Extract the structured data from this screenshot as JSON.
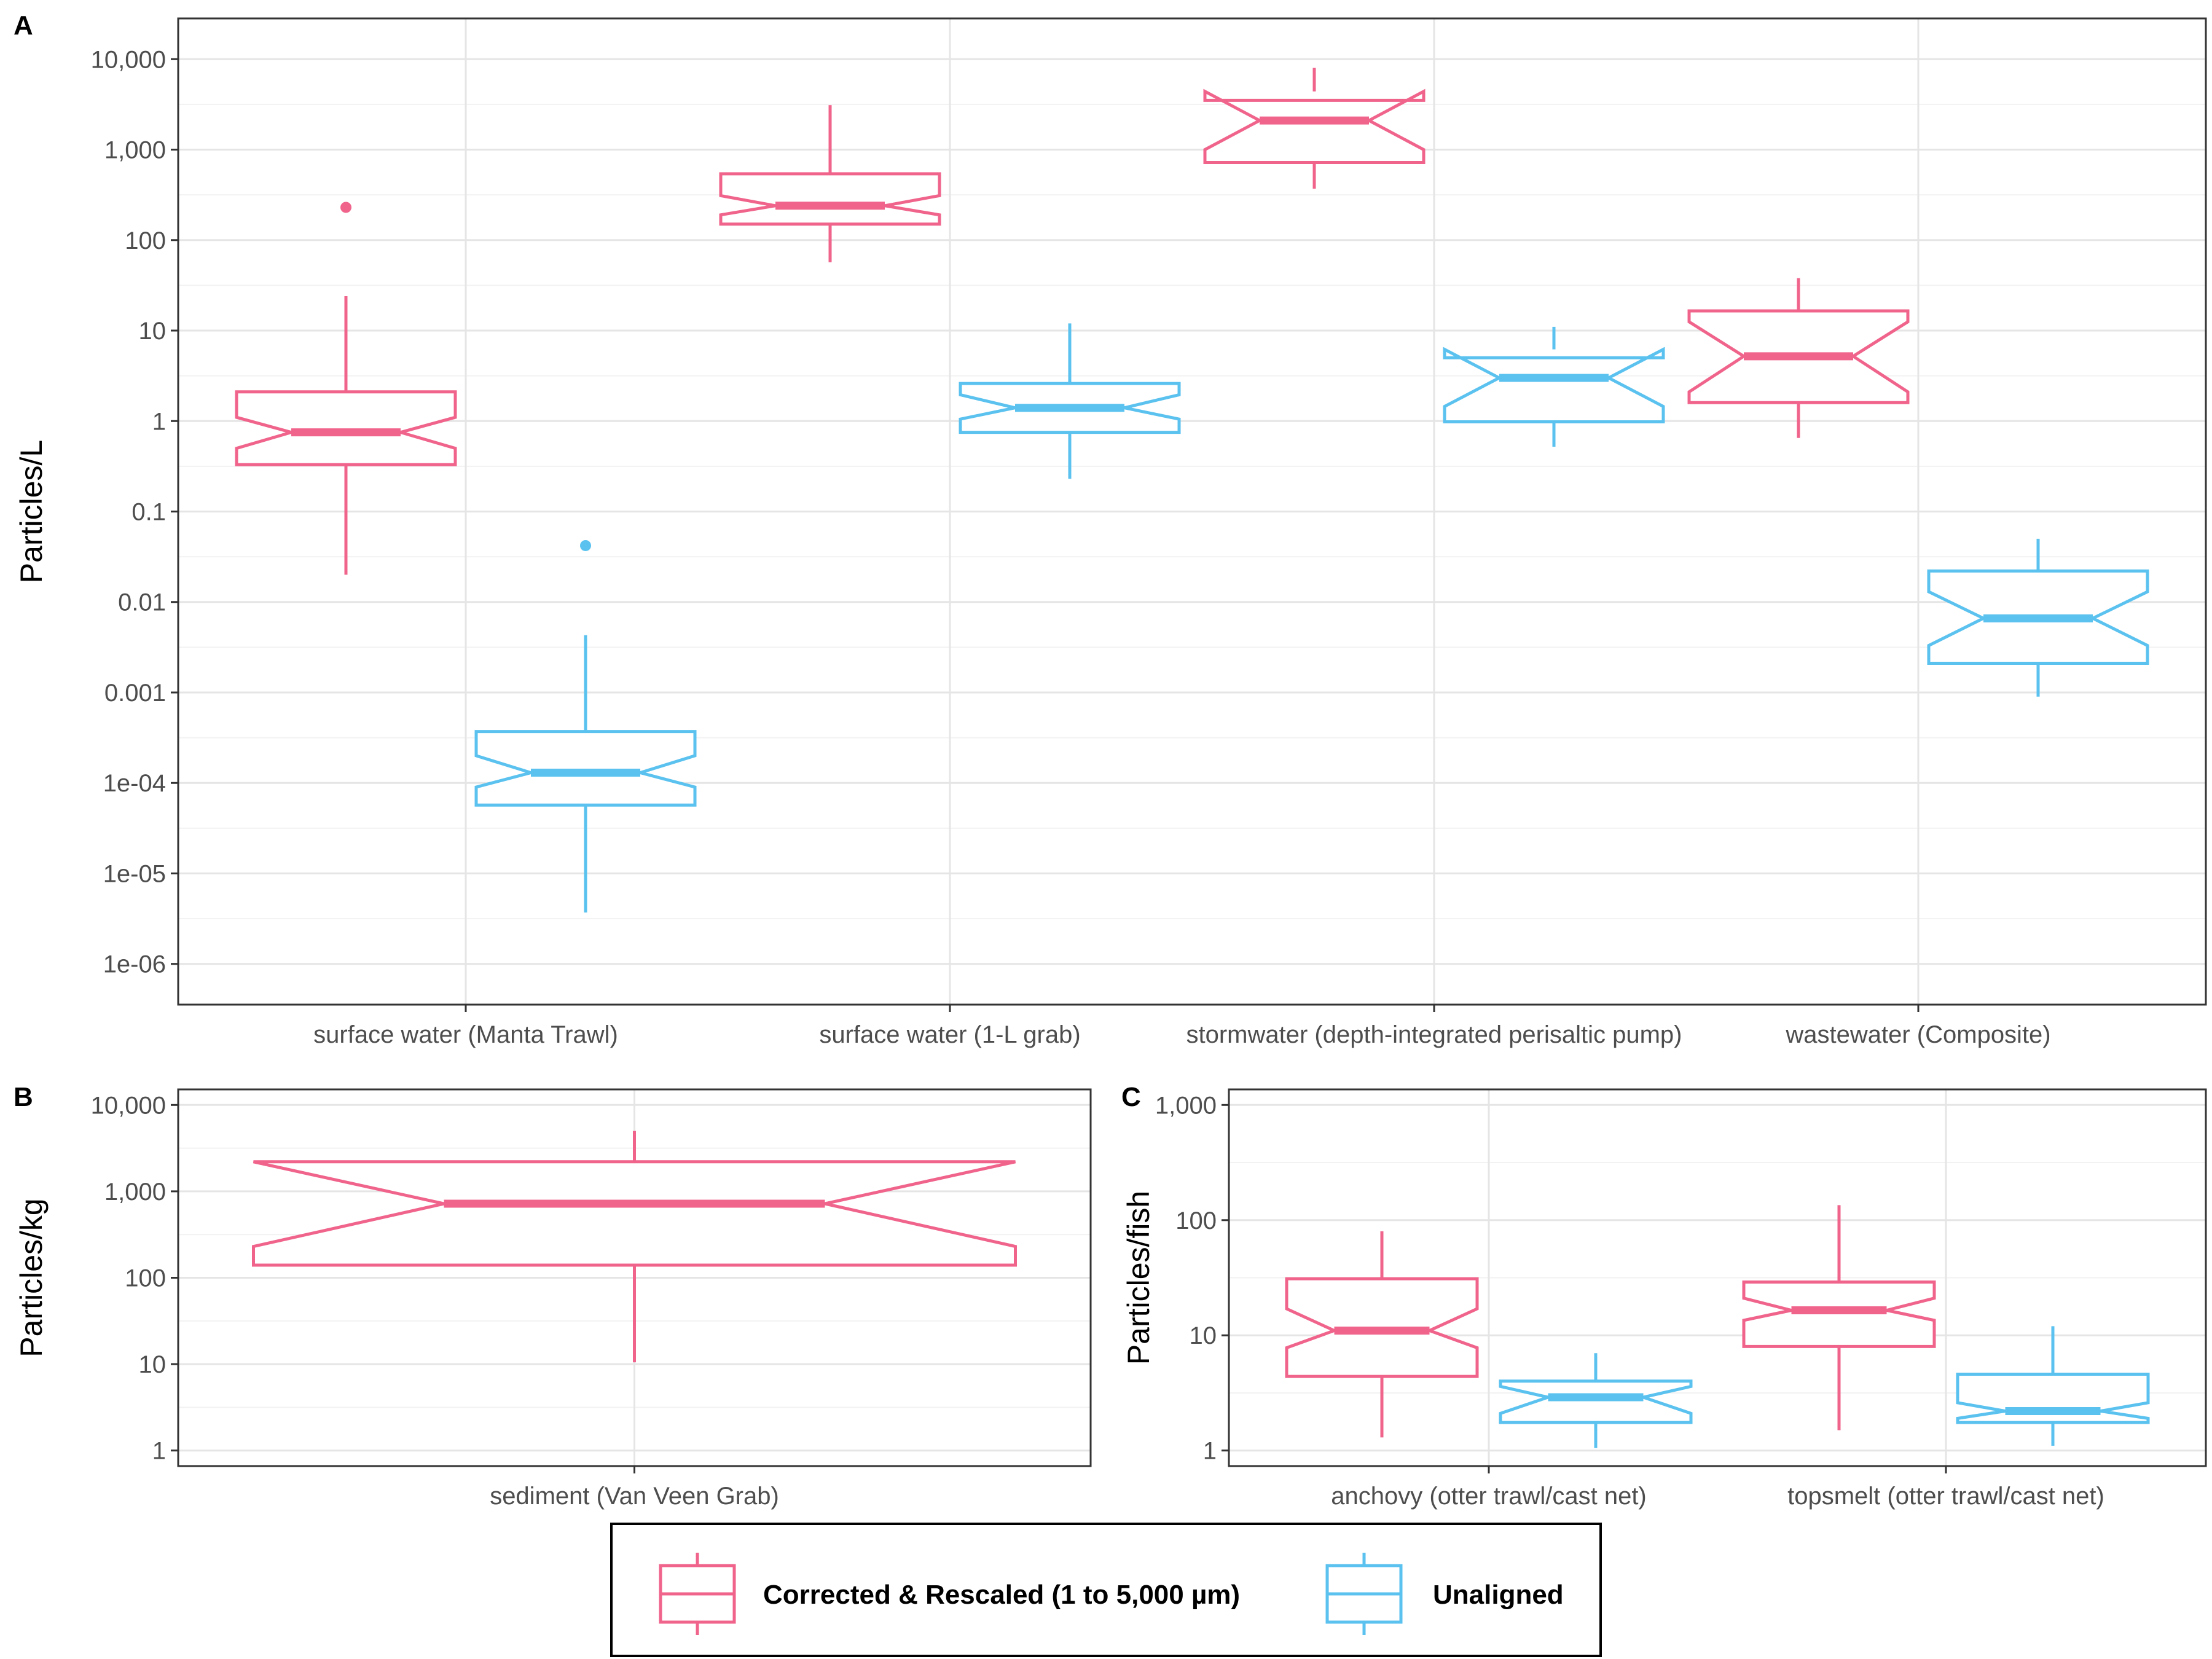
{
  "colors": {
    "corrected": "#f0648c",
    "unaligned": "#5bc2ef",
    "grid_major": "#e5e5e5",
    "grid_minor": "#f2f2f2",
    "border": "#333333"
  },
  "legend": {
    "position": "bottom",
    "items": [
      {
        "label": "Corrected & Rescaled (1 to 5,000 µm)",
        "color": "#f0648c"
      },
      {
        "label": "Unaligned",
        "color": "#5bc2ef"
      }
    ]
  },
  "chart_data": [
    {
      "panel": "A",
      "type": "boxplot",
      "ylabel": "Particles/L",
      "yscale": "log10",
      "ylim": [
        1e-06,
        10000
      ],
      "yticks": [
        "1e-06",
        "1e-05",
        "1e-04",
        "0.001",
        "0.01",
        "0.1",
        "1",
        "10",
        "100",
        "1,000",
        "10,000"
      ],
      "categories": [
        "surface water (Manta Trawl)",
        "surface water (1-L grab)",
        "stormwater (depth-integrated perisaltic pump)",
        "wastewater (Composite)"
      ],
      "grid": true,
      "boxes": [
        {
          "category": "surface water (Manta Trawl)",
          "series": "Corrected & Rescaled (1 to 5,000 µm)",
          "min": 0.02,
          "q1": 0.33,
          "notch_low": 0.5,
          "median": 0.75,
          "notch_high": 1.1,
          "q3": 2.1,
          "max": 24,
          "outliers": [
            230
          ]
        },
        {
          "category": "surface water (Manta Trawl)",
          "series": "Unaligned",
          "min": 3.7e-06,
          "q1": 5.7e-05,
          "notch_low": 9e-05,
          "median": 0.00013,
          "notch_high": 0.0002,
          "q3": 0.00037,
          "max": 0.0043,
          "outliers": [
            0.042
          ]
        },
        {
          "category": "surface water (1-L grab)",
          "series": "Corrected & Rescaled (1 to 5,000 µm)",
          "min": 57,
          "q1": 150,
          "notch_low": 190,
          "median": 240,
          "notch_high": 310,
          "q3": 540,
          "max": 3100,
          "outliers": []
        },
        {
          "category": "surface water (1-L grab)",
          "series": "Unaligned",
          "min": 0.23,
          "q1": 0.75,
          "notch_low": 1.05,
          "median": 1.4,
          "notch_high": 1.95,
          "q3": 2.6,
          "max": 12,
          "outliers": []
        },
        {
          "category": "stormwater (depth-integrated perisaltic pump)",
          "series": "Corrected & Rescaled (1 to 5,000 µm)",
          "min": 370,
          "q1": 720,
          "notch_low": 1000,
          "median": 2100,
          "notch_high": 4400,
          "q3": 3500,
          "max": 8000,
          "outliers": []
        },
        {
          "category": "stormwater (depth-integrated perisaltic pump)",
          "series": "Unaligned",
          "min": 0.52,
          "q1": 0.98,
          "notch_low": 1.45,
          "median": 3.0,
          "notch_high": 6.2,
          "q3": 5.0,
          "max": 11,
          "outliers": []
        },
        {
          "category": "wastewater (Composite)",
          "series": "Corrected & Rescaled (1 to 5,000 µm)",
          "min": 0.65,
          "q1": 1.6,
          "notch_low": 2.1,
          "median": 5.2,
          "notch_high": 12.5,
          "q3": 16.5,
          "max": 38,
          "outliers": []
        },
        {
          "category": "wastewater (Composite)",
          "series": "Unaligned",
          "min": 0.0009,
          "q1": 0.0021,
          "notch_low": 0.0033,
          "median": 0.0066,
          "notch_high": 0.013,
          "q3": 0.022,
          "max": 0.05,
          "outliers": []
        }
      ]
    },
    {
      "panel": "B",
      "type": "boxplot",
      "ylabel": "Particles/kg",
      "yscale": "log10",
      "ylim": [
        1,
        10000
      ],
      "yticks": [
        "1",
        "10",
        "100",
        "1,000",
        "10,000"
      ],
      "categories": [
        "sediment (Van Veen Grab)"
      ],
      "grid": true,
      "boxes": [
        {
          "category": "sediment (Van Veen Grab)",
          "series": "Corrected & Rescaled (1 to 5,000 µm)",
          "min": 10.5,
          "q1": 140,
          "notch_low": 230,
          "median": 720,
          "notch_high": 2200,
          "q3": 2200,
          "max": 5000,
          "outliers": []
        }
      ]
    },
    {
      "panel": "C",
      "type": "boxplot",
      "ylabel": "Particles/fish",
      "yscale": "log10",
      "ylim": [
        1,
        1000
      ],
      "yticks": [
        "1",
        "10",
        "100",
        "1,000"
      ],
      "categories": [
        "anchovy (otter trawl/cast net)",
        "topsmelt (otter trawl/cast net)"
      ],
      "grid": true,
      "boxes": [
        {
          "category": "anchovy (otter trawl/cast net)",
          "series": "Corrected & Rescaled (1 to 5,000 µm)",
          "min": 1.3,
          "q1": 4.4,
          "notch_low": 7.8,
          "median": 11,
          "notch_high": 17,
          "q3": 31,
          "max": 80,
          "outliers": []
        },
        {
          "category": "anchovy (otter trawl/cast net)",
          "series": "Unaligned",
          "min": 1.05,
          "q1": 1.75,
          "notch_low": 2.1,
          "median": 2.9,
          "notch_high": 3.6,
          "q3": 4.0,
          "max": 7,
          "outliers": []
        },
        {
          "category": "topsmelt (otter trawl/cast net)",
          "series": "Corrected & Rescaled (1 to 5,000 µm)",
          "min": 1.5,
          "q1": 8.0,
          "notch_low": 13.5,
          "median": 16.5,
          "notch_high": 21,
          "q3": 29,
          "max": 135,
          "outliers": []
        },
        {
          "category": "topsmelt (otter trawl/cast net)",
          "series": "Unaligned",
          "min": 1.1,
          "q1": 1.75,
          "notch_low": 1.9,
          "median": 2.2,
          "notch_high": 2.6,
          "q3": 4.6,
          "max": 12,
          "outliers": []
        }
      ]
    }
  ]
}
